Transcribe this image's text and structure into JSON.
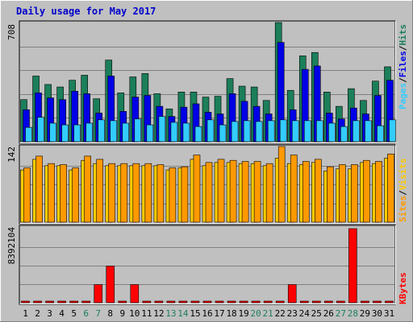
{
  "title": "Daily usage for May 2017",
  "colors": {
    "background": "#c0c0c0",
    "panel": "#c0c0c0",
    "grid": "#808080",
    "title": "#0000cc",
    "hits": "#1b7f5a",
    "files": "#0000e6",
    "pages": "#33ccff",
    "visits": "#ffcc00",
    "sites": "#ff9900",
    "kbytes": "#ff0000",
    "weekend_label": "#1b7f5a",
    "weekday_label": "#000000"
  },
  "legend": {
    "top": [
      "Pages",
      "/",
      "Files",
      "/",
      "Hits"
    ],
    "mid": [
      "Sites",
      "/",
      "Visits"
    ],
    "bottom": "KBytes"
  },
  "chart_data": [
    {
      "type": "bar",
      "panel": "hits-files-pages",
      "axis_max_label": "708",
      "ylim": [
        0,
        708
      ],
      "categories": [
        "1",
        "2",
        "3",
        "4",
        "5",
        "6",
        "7",
        "8",
        "9",
        "10",
        "11",
        "12",
        "13",
        "14",
        "15",
        "16",
        "17",
        "18",
        "19",
        "20",
        "21",
        "22",
        "23",
        "24",
        "25",
        "26",
        "27",
        "28",
        "29",
        "30",
        "31"
      ],
      "weekend_days": [
        "6",
        "7",
        "13",
        "14",
        "20",
        "21",
        "27",
        "28"
      ],
      "series": [
        {
          "name": "Hits",
          "values": [
            250,
            390,
            340,
            325,
            365,
            395,
            255,
            485,
            290,
            385,
            405,
            285,
            195,
            295,
            295,
            265,
            270,
            375,
            330,
            325,
            245,
            708,
            305,
            510,
            530,
            295,
            210,
            315,
            245,
            360,
            445
          ]
        },
        {
          "name": "Files",
          "values": [
            190,
            290,
            260,
            250,
            300,
            285,
            170,
            390,
            180,
            265,
            275,
            210,
            150,
            205,
            225,
            175,
            165,
            285,
            240,
            210,
            165,
            590,
            190,
            430,
            450,
            170,
            135,
            200,
            165,
            275,
            365
          ]
        },
        {
          "name": "Pages",
          "values": [
            85,
            145,
            110,
            100,
            100,
            110,
            130,
            125,
            110,
            135,
            100,
            150,
            115,
            110,
            90,
            130,
            100,
            120,
            125,
            120,
            125,
            130,
            125,
            125,
            125,
            110,
            90,
            125,
            125,
            95,
            130
          ]
        }
      ]
    },
    {
      "type": "bar",
      "panel": "visits-sites",
      "axis_max_label": "142",
      "ylim": [
        0,
        142
      ],
      "categories": [
        "1",
        "2",
        "3",
        "4",
        "5",
        "6",
        "7",
        "8",
        "9",
        "10",
        "11",
        "12",
        "13",
        "14",
        "15",
        "16",
        "17",
        "18",
        "19",
        "20",
        "21",
        "22",
        "23",
        "24",
        "25",
        "26",
        "27",
        "28",
        "29",
        "30",
        "31"
      ],
      "series": [
        {
          "name": "Visits",
          "values": [
            98,
            118,
            106,
            106,
            98,
            116,
            110,
            106,
            106,
            106,
            106,
            106,
            98,
            102,
            118,
            106,
            112,
            112,
            110,
            110,
            106,
            120,
            110,
            108,
            112,
            96,
            100,
            100,
            112,
            110,
            120
          ]
        },
        {
          "name": "Sites",
          "values": [
            102,
            124,
            110,
            108,
            102,
            124,
            118,
            110,
            110,
            110,
            110,
            108,
            102,
            104,
            126,
            112,
            118,
            116,
            114,
            114,
            110,
            142,
            126,
            114,
            118,
            104,
            108,
            108,
            116,
            114,
            128
          ]
        }
      ]
    },
    {
      "type": "bar",
      "panel": "kbytes",
      "axis_max_label": "8392104",
      "ylim": [
        0,
        8392104
      ],
      "categories": [
        "1",
        "2",
        "3",
        "4",
        "5",
        "6",
        "7",
        "8",
        "9",
        "10",
        "11",
        "12",
        "13",
        "14",
        "15",
        "16",
        "17",
        "18",
        "19",
        "20",
        "21",
        "22",
        "23",
        "24",
        "25",
        "26",
        "27",
        "28",
        "29",
        "30",
        "31"
      ],
      "series": [
        {
          "name": "KBytes",
          "values": [
            150000,
            150000,
            150000,
            150000,
            150000,
            150000,
            2050000,
            4150000,
            150000,
            2050000,
            150000,
            150000,
            150000,
            150000,
            150000,
            150000,
            150000,
            150000,
            150000,
            150000,
            150000,
            150000,
            2050000,
            150000,
            150000,
            150000,
            150000,
            8392104,
            150000,
            150000,
            150000
          ]
        }
      ]
    }
  ]
}
